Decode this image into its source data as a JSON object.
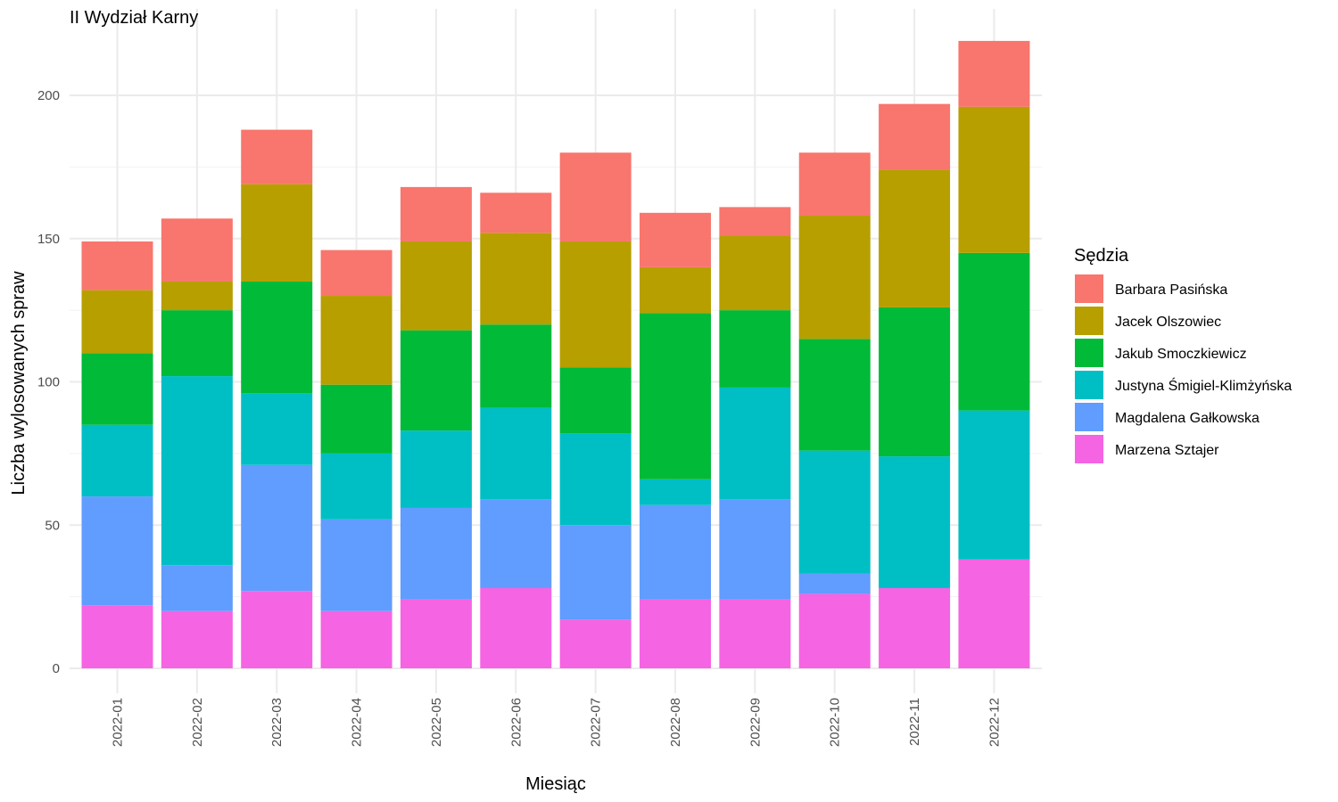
{
  "chart_data": {
    "type": "bar",
    "stacked": true,
    "title": "II Wydział Karny",
    "xlabel": "Miesiąc",
    "ylabel": "Liczba wylosowanych spraw",
    "ylim": [
      0,
      220
    ],
    "yticks": [
      0,
      50,
      100,
      150,
      200
    ],
    "grid": true,
    "legend_position": "right",
    "legend_title": "Sędzia",
    "categories": [
      "2022-01",
      "2022-02",
      "2022-03",
      "2022-04",
      "2022-05",
      "2022-06",
      "2022-07",
      "2022-08",
      "2022-09",
      "2022-10",
      "2022-11",
      "2022-12"
    ],
    "series": [
      {
        "name": "Marzena Sztajer",
        "color": "#F564E3",
        "values": [
          22,
          20,
          27,
          20,
          24,
          28,
          17,
          24,
          24,
          26,
          28,
          38
        ]
      },
      {
        "name": "Magdalena Gałkowska",
        "color": "#619CFF",
        "values": [
          38,
          16,
          44,
          32,
          32,
          31,
          33,
          33,
          35,
          7,
          0,
          0
        ]
      },
      {
        "name": "Justyna Śmigiel-Klimżyńska",
        "color": "#00BFC4",
        "values": [
          25,
          66,
          25,
          23,
          27,
          32,
          32,
          9,
          39,
          43,
          46,
          52
        ]
      },
      {
        "name": "Jakub Smoczkiewicz",
        "color": "#00BA38",
        "values": [
          25,
          23,
          39,
          24,
          35,
          29,
          23,
          58,
          27,
          39,
          52,
          55
        ]
      },
      {
        "name": "Jacek Olszowiec",
        "color": "#B79F00",
        "values": [
          22,
          10,
          34,
          31,
          31,
          32,
          44,
          16,
          26,
          43,
          48,
          51
        ]
      },
      {
        "name": "Barbara Pasińska",
        "color": "#F8766D",
        "values": [
          17,
          22,
          19,
          16,
          19,
          14,
          31,
          19,
          10,
          22,
          23,
          23
        ]
      }
    ],
    "legend_order": [
      "Barbara Pasińska",
      "Jacek Olszowiec",
      "Jakub Smoczkiewicz",
      "Justyna Śmigiel-Klimżyńska",
      "Magdalena Gałkowska",
      "Marzena Sztajer"
    ]
  }
}
